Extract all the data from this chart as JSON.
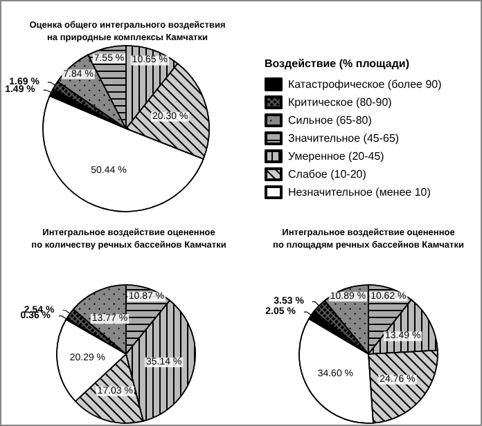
{
  "chart_data": [
    {
      "type": "pie",
      "title": "Оценка общего интегрального воздействия\nна природные комплексы Камчатки",
      "legend_title": "Воздействие (% площади)",
      "legend": "right",
      "categories": [
        "Катастрофическое (более 90)",
        "Критическое (80-90)",
        "Сильное (65-80)",
        "Значительное (45-65)",
        "Умеренное (20-45)",
        "Слабое (10-20)",
        "Незначительное (менее 10)"
      ],
      "values": [
        1.49,
        1.69,
        7.84,
        7.55,
        10.65,
        20.3,
        50.44
      ],
      "value_labels": [
        "1.49 %",
        "1.69 %",
        "7.84 %",
        "7.55 %",
        "10.65 %",
        "20.30 %",
        "50.44 %"
      ],
      "colors": [
        "#000000",
        "#555555",
        "#888888",
        "#aaaaaa",
        "#bbbbbb",
        "#cccccc",
        "#ffffff"
      ]
    },
    {
      "type": "pie",
      "title": "Интегральное воздействие оцененное\nпо количеству речных бассейнов Камчатки",
      "legend": false,
      "values": [
        0.36,
        2.54,
        13.77,
        10.87,
        35.14,
        17.03,
        20.29
      ],
      "value_labels": [
        "0.36 %",
        "2.54 %",
        "13.77 %",
        "10.87 %",
        "35.14 %",
        "17.03 %",
        "20.29 %"
      ],
      "colors": [
        "#000000",
        "#555555",
        "#888888",
        "#aaaaaa",
        "#bbbbbb",
        "#cccccc",
        "#ffffff"
      ]
    },
    {
      "type": "pie",
      "title": "Интегральное воздействие оцененное\nпо площадям речных бассейнов Камчатки",
      "legend": false,
      "values": [
        2.05,
        3.53,
        10.89,
        10.62,
        13.49,
        24.76,
        34.6
      ],
      "value_labels": [
        "2.05 %",
        "3.53 %",
        "10.89 %",
        "10.62 %",
        "13.49 %",
        "24.76 %",
        "34.60 %"
      ],
      "colors": [
        "#000000",
        "#555555",
        "#888888",
        "#aaaaaa",
        "#bbbbbb",
        "#cccccc",
        "#ffffff"
      ]
    }
  ]
}
